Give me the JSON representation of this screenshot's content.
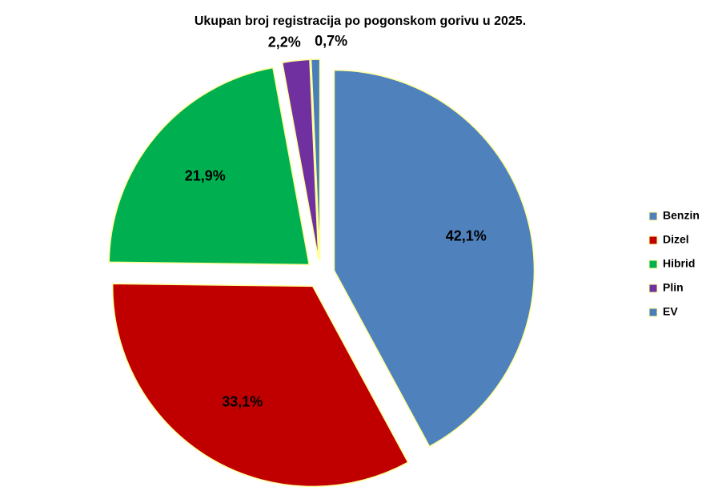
{
  "chart_data": {
    "type": "pie",
    "title": "Ukupan broj registracija po pogonskom gorivu u 2025.",
    "categories": [
      "Benzin",
      "Dizel",
      "Hibrid",
      "Plin",
      "EV"
    ],
    "values": [
      42.1,
      33.1,
      21.9,
      2.2,
      0.7
    ],
    "value_labels": [
      "42,1%",
      "33,1%",
      "21,9%",
      "2,2%",
      "0,7%"
    ],
    "colors": [
      "#4f81bd",
      "#c00000",
      "#00b050",
      "#7030a0",
      "#4a7ebb"
    ],
    "legend": "right"
  }
}
